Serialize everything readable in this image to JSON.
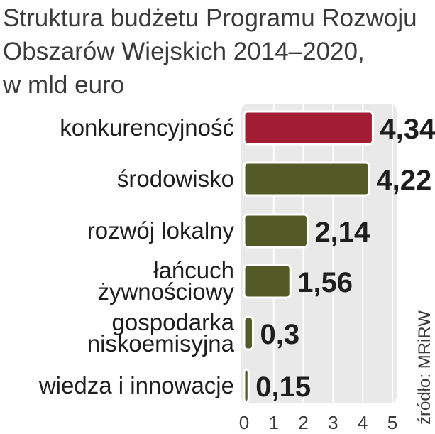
{
  "title_lines": [
    "Struktura budżetu Programu Rozwoju",
    "Obszarów Wiejskich 2014–2020,",
    "w mld euro"
  ],
  "source": "źródło: MRiRW",
  "colors": {
    "highlight": "#a21d34",
    "bar": "#545a25",
    "plot_background": "#e9e9e9",
    "grid": "#ffffff"
  },
  "chart_data": {
    "type": "bar",
    "orientation": "horizontal",
    "title": "Struktura budżetu Programu Rozwoju Obszarów Wiejskich 2014–2020, w mld euro",
    "categories": [
      [
        "konkurencyjność"
      ],
      [
        "środowisko"
      ],
      [
        "rozwój lokalny"
      ],
      [
        "łańcuch",
        "żywnościowy"
      ],
      [
        "gospodarka",
        "niskoemisyjna"
      ],
      [
        "wiedza i innowacje"
      ]
    ],
    "values": [
      4.34,
      4.22,
      2.14,
      1.56,
      0.3,
      0.15
    ],
    "value_labels": [
      "4,34",
      "4,22",
      "2,14",
      "1,56",
      "0,3",
      "0,15"
    ],
    "xlim": [
      0,
      5
    ],
    "xticks": [
      "0",
      "1",
      "2",
      "3",
      "4",
      "5"
    ],
    "grid": true,
    "highlighted_index": 0
  }
}
